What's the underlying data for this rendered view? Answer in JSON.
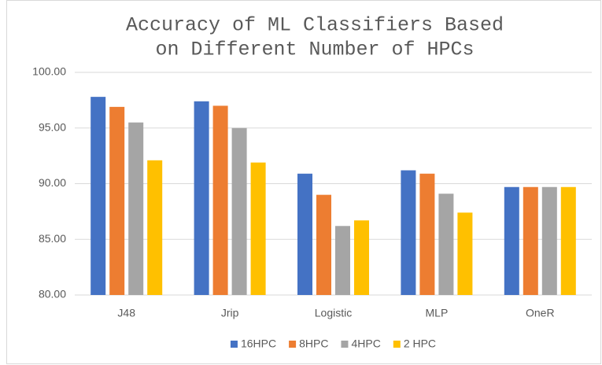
{
  "chart_data": {
    "type": "bar",
    "title": [
      "Accuracy of ML Classifiers Based",
      "on Different Number of HPCs"
    ],
    "categories": [
      "J48",
      "Jrip",
      "Logistic",
      "MLP",
      "OneR"
    ],
    "series": [
      {
        "name": "16HPC",
        "color": "#4472c4",
        "values": [
          97.8,
          97.4,
          90.9,
          91.2,
          89.7
        ]
      },
      {
        "name": "8HPC",
        "color": "#ed7d31",
        "values": [
          96.9,
          97.0,
          89.0,
          90.9,
          89.7
        ]
      },
      {
        "name": "4HPC",
        "color": "#a5a5a5",
        "values": [
          95.5,
          95.0,
          86.2,
          89.1,
          89.7
        ]
      },
      {
        "name": "2 HPC",
        "color": "#ffc000",
        "values": [
          92.1,
          91.9,
          86.7,
          87.4,
          89.7
        ]
      }
    ],
    "ylim": [
      80,
      100
    ],
    "yticks": [
      {
        "value": 80,
        "label": "80.00"
      },
      {
        "value": 85,
        "label": "85.00"
      },
      {
        "value": 90,
        "label": "90.00"
      },
      {
        "value": 95,
        "label": "95.00"
      },
      {
        "value": 100,
        "label": "100.00"
      }
    ],
    "grid": true,
    "legend": "bottom"
  }
}
